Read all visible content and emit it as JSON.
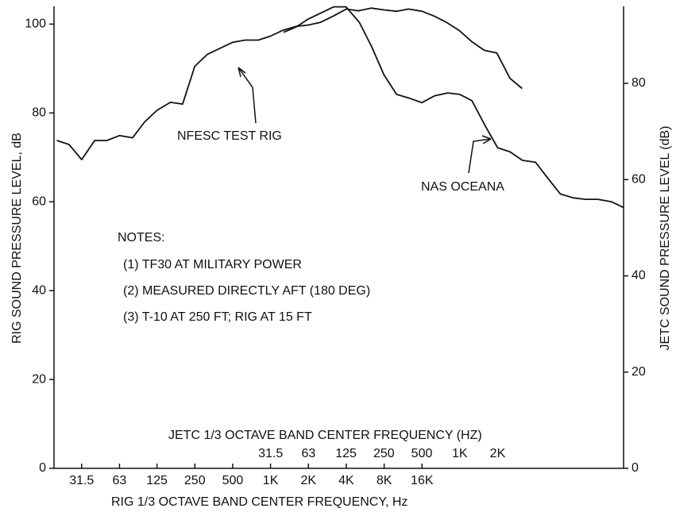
{
  "chart_data": {
    "type": "line",
    "y_label": "RIG SOUND PRESSURE LEVEL, dB",
    "y2_label": "JETC SOUND PRESSURE LEVEL (dB)",
    "x_label": "RIG 1/3 OCTAVE BAND CENTER FREQUENCY, Hz",
    "x2_label": "JETC 1/3 OCTAVE BAND CENTER FREQUENCY (HZ)",
    "x_log": true,
    "xlim": [
      19,
      640000
    ],
    "xticks": [
      31.5,
      63,
      125,
      250,
      500,
      {
        "value": 1000,
        "label": "1K"
      },
      {
        "value": 2000,
        "label": "2K"
      },
      {
        "value": 4000,
        "label": "4K"
      },
      {
        "value": 8000,
        "label": "8K"
      },
      {
        "value": 16000,
        "label": "16K"
      }
    ],
    "x2lim": [
      0.6,
      20000
    ],
    "x2ticks": [
      31.5,
      63,
      125,
      250,
      500,
      {
        "value": 1000,
        "label": "1K"
      },
      {
        "value": 2000,
        "label": "2K"
      }
    ],
    "ylim": [
      0,
      104
    ],
    "yticks": [
      0,
      20,
      40,
      60,
      80,
      100
    ],
    "y2lim": [
      0,
      96
    ],
    "y2ticks": [
      0,
      20,
      40,
      60,
      80
    ],
    "series": [
      {
        "name": "NFESC TEST RIG",
        "color": "#111111",
        "axis": "y",
        "x": [
          20,
          25,
          31.5,
          40,
          50,
          63,
          80,
          100,
          125,
          160,
          200,
          250,
          315,
          400,
          500,
          630,
          800,
          1000,
          1250,
          1600,
          2000,
          2500,
          3150,
          4000,
          5000,
          6300,
          8000,
          10000,
          12500,
          16000,
          20000,
          25000,
          31500,
          40000,
          50000,
          63000,
          80000,
          100000
        ],
        "values": [
          73.8,
          72.9,
          69.5,
          73.8,
          73.8,
          74.9,
          74.4,
          78,
          80.6,
          82.4,
          82,
          90.5,
          93.2,
          94.6,
          95.9,
          96.4,
          96.4,
          97.3,
          98.6,
          99.5,
          99.8,
          100.4,
          101.8,
          103.4,
          103,
          103.6,
          103.2,
          102.9,
          103.4,
          102.9,
          101.8,
          100.4,
          98.6,
          96,
          94.1,
          93.5,
          87.8,
          85.5
        ]
      },
      {
        "name": "NAS OCEANA",
        "color": "#111111",
        "axis": "y2",
        "x": [
          40,
          50,
          63,
          80,
          100,
          125,
          160,
          200,
          250,
          315,
          400,
          500,
          630,
          800,
          1000,
          1250,
          1600,
          2000,
          2500,
          3150,
          4000,
          5000,
          6300,
          8000,
          10000,
          12500,
          16000,
          20000
        ],
        "values": [
          90.6,
          91.7,
          93.4,
          94.7,
          95.9,
          95.9,
          92.6,
          87.6,
          81.8,
          77.7,
          76.9,
          76,
          77.4,
          78,
          77.7,
          76.4,
          71.1,
          66.6,
          65.8,
          64,
          63.6,
          60.3,
          57,
          56.2,
          55.9,
          55.9,
          55.4,
          54.2
        ]
      }
    ],
    "notes": {
      "title": "NOTES:",
      "items": [
        "(1) TF30 AT MILITARY POWER",
        "(2) MEASURED DIRECTLY AFT (180 DEG)",
        "(3) T-10 AT 250 FT; RIG AT 15 FT"
      ]
    }
  }
}
